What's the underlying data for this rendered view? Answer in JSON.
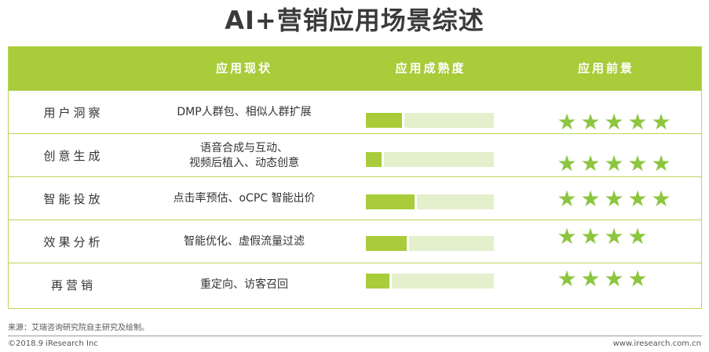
{
  "title": "AI+营销应用场景综述",
  "header": {
    "col_status": "应用现状",
    "col_maturity": "应用成熟度",
    "col_prospect": "应用前景"
  },
  "rows": [
    {
      "label": "用户洞察",
      "status": "DMP人群包、相似人群扩展",
      "maturity": 0.3,
      "stars": 5
    },
    {
      "label": "创意生成",
      "status": "语音合成与互动、\n视频后植入、动态创意",
      "maturity": 0.14,
      "stars": 5
    },
    {
      "label": "智能投放",
      "status": "点击率预估、oCPC 智能出价",
      "maturity": 0.4,
      "stars": 5
    },
    {
      "label": "效果分析",
      "status": "智能优化、虚假流量过滤",
      "maturity": 0.34,
      "stars": 4
    },
    {
      "label": "再营销",
      "status": "重定向、访客召回",
      "maturity": 0.2,
      "stars": 4
    }
  ],
  "colors": {
    "accent": "#a8cc3a",
    "track": "#e4efcc",
    "star": "#8cc63f"
  },
  "icons": {
    "star": "star-icon"
  },
  "footer": {
    "source": "来源：艾瑞咨询研究院自主研究及绘制。",
    "copyright": "©2018.9 iResearch Inc",
    "url": "www.iresearch.com.cn"
  }
}
